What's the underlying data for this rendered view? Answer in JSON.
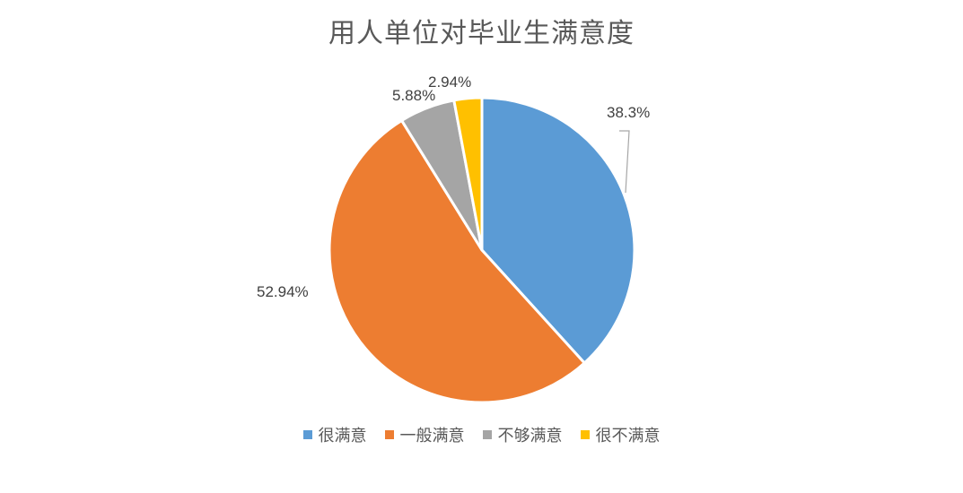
{
  "chart_data": {
    "type": "pie",
    "title": "用人单位对毕业生满意度",
    "categories": [
      "很满意",
      "一般满意",
      "不够满意",
      "很不满意"
    ],
    "values": [
      38.3,
      52.94,
      5.88,
      2.94
    ],
    "labels": [
      "38.3%",
      "52.94%",
      "5.88%",
      "2.94%"
    ],
    "colors": [
      "#5B9BD5",
      "#ED7D31",
      "#A5A5A5",
      "#FFC000"
    ],
    "legend_position": "bottom",
    "start_angle_deg": 0,
    "direction": "clockwise"
  }
}
